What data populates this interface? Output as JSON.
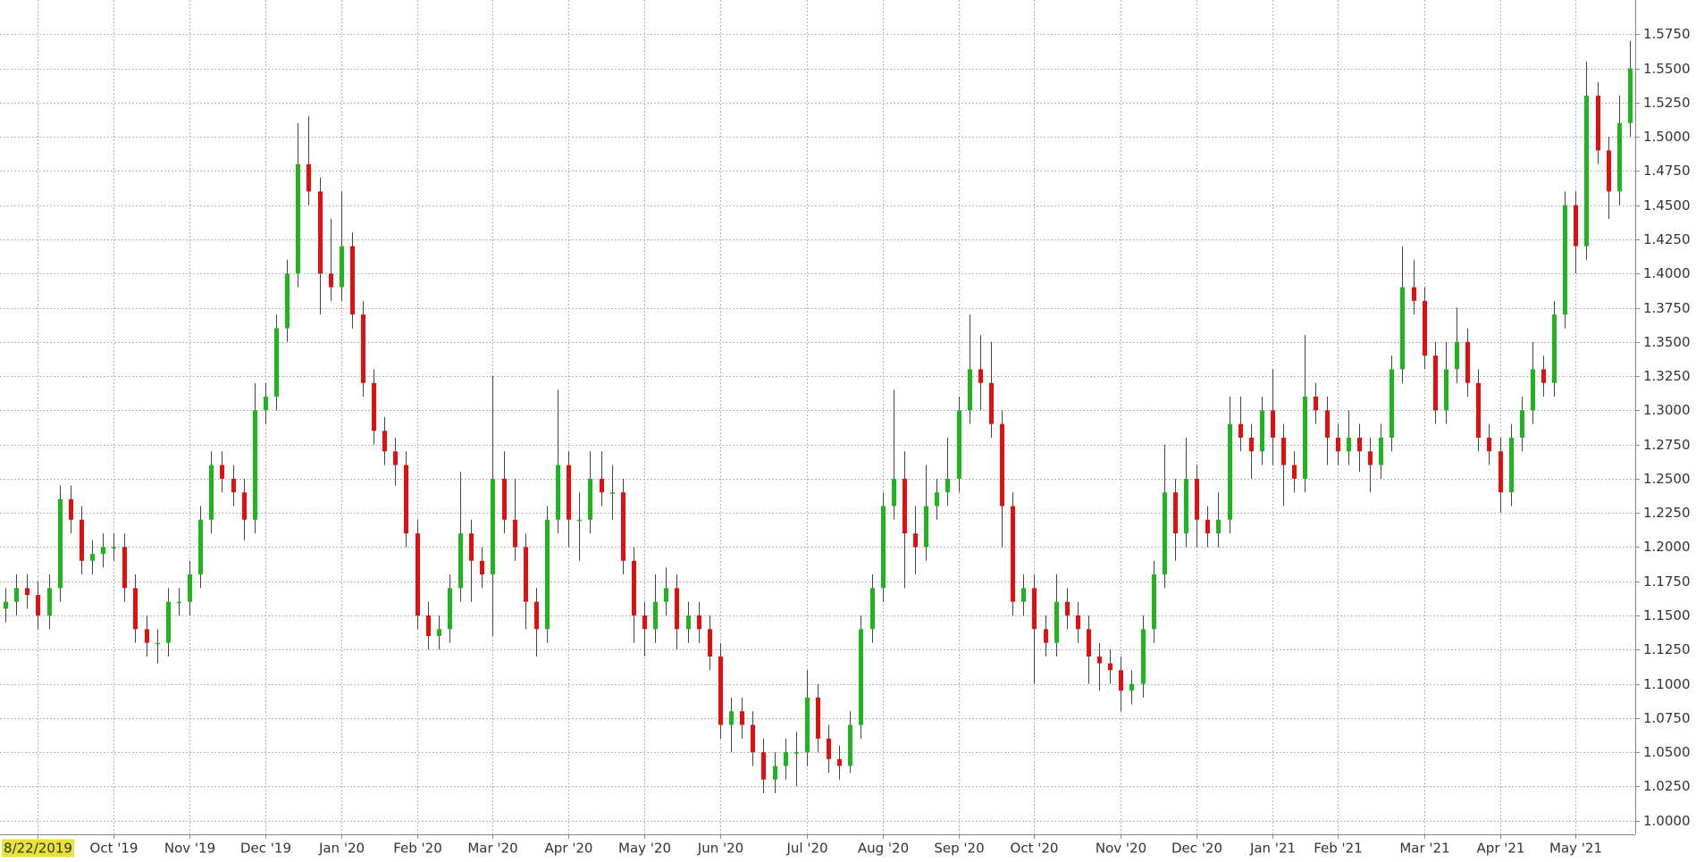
{
  "chart_data": {
    "type": "candlestick",
    "categories": [
      null,
      null,
      null,
      "8/22/2019",
      null,
      null,
      null,
      null,
      null,
      null,
      "Oct '19",
      null,
      null,
      null,
      null,
      null,
      null,
      "Nov '19",
      null,
      null,
      null,
      null,
      null,
      null,
      "Dec '19",
      null,
      null,
      null,
      null,
      null,
      null,
      "Jan '20",
      null,
      null,
      null,
      null,
      null,
      null,
      "Feb '20",
      null,
      null,
      null,
      null,
      null,
      null,
      "Mar '20",
      null,
      null,
      null,
      null,
      null,
      null,
      "Apr '20",
      null,
      null,
      null,
      null,
      null,
      null,
      "May '20",
      null,
      null,
      null,
      null,
      null,
      null,
      "Jun '20",
      null,
      null,
      null,
      null,
      null,
      null,
      null,
      "Jul '20",
      null,
      null,
      null,
      null,
      null,
      null,
      "Aug '20",
      null,
      null,
      null,
      null,
      null,
      null,
      "Sep '20",
      null,
      null,
      null,
      null,
      null,
      null,
      "Oct '20",
      null,
      null,
      null,
      null,
      null,
      null,
      null,
      "Nov '20",
      null,
      null,
      null,
      null,
      null,
      null,
      "Dec '20",
      null,
      null,
      null,
      null,
      null,
      null,
      "Jan '21",
      null,
      null,
      null,
      null,
      null,
      "Feb '21",
      null,
      null,
      null,
      null,
      null,
      null,
      null,
      "Mar '21",
      null,
      null,
      null,
      null,
      null,
      null,
      "Apr '21",
      null,
      null,
      null,
      null,
      null,
      null,
      "May '21",
      null,
      null,
      null,
      null,
      null
    ],
    "open": [
      1.155,
      1.16,
      1.17,
      1.165,
      1.15,
      1.17,
      1.235,
      1.22,
      1.19,
      1.195,
      1.2,
      1.2,
      1.17,
      1.14,
      1.13,
      1.13,
      1.16,
      1.16,
      1.18,
      1.22,
      1.26,
      1.25,
      1.24,
      1.22,
      1.3,
      1.31,
      1.36,
      1.4,
      1.48,
      1.46,
      1.4,
      1.39,
      1.42,
      1.37,
      1.32,
      1.285,
      1.27,
      1.26,
      1.21,
      1.15,
      1.135,
      1.14,
      1.17,
      1.21,
      1.19,
      1.18,
      1.25,
      1.22,
      1.2,
      1.16,
      1.14,
      1.22,
      1.26,
      1.22,
      1.22,
      1.25,
      1.24,
      1.24,
      1.19,
      1.15,
      1.14,
      1.16,
      1.17,
      1.14,
      1.15,
      1.14,
      1.12,
      1.07,
      1.08,
      1.07,
      1.05,
      1.03,
      1.04,
      1.05,
      1.05,
      1.09,
      1.06,
      1.045,
      1.04,
      1.07,
      1.14,
      1.17,
      1.23,
      1.25,
      1.21,
      1.2,
      1.23,
      1.24,
      1.25,
      1.3,
      1.33,
      1.32,
      1.29,
      1.23,
      1.16,
      1.17,
      1.14,
      1.13,
      1.16,
      1.15,
      1.14,
      1.12,
      1.115,
      1.11,
      1.095,
      1.1,
      1.14,
      1.18,
      1.24,
      1.21,
      1.25,
      1.22,
      1.21,
      1.22,
      1.29,
      1.28,
      1.27,
      1.3,
      1.28,
      1.26,
      1.25,
      1.31,
      1.3,
      1.28,
      1.27,
      1.28,
      1.27,
      1.26,
      1.28,
      1.33,
      1.39,
      1.38,
      1.34,
      1.3,
      1.33,
      1.35,
      1.32,
      1.28,
      1.27,
      1.24,
      1.28,
      1.3,
      1.33,
      1.32,
      1.37,
      1.45,
      1.42,
      1.53,
      1.49,
      1.46,
      1.51
    ],
    "high": [
      1.17,
      1.18,
      1.18,
      1.175,
      1.18,
      1.245,
      1.245,
      1.23,
      1.205,
      1.21,
      1.21,
      1.21,
      1.18,
      1.15,
      1.14,
      1.17,
      1.17,
      1.19,
      1.23,
      1.27,
      1.27,
      1.26,
      1.25,
      1.32,
      1.32,
      1.37,
      1.41,
      1.51,
      1.515,
      1.47,
      1.44,
      1.46,
      1.43,
      1.38,
      1.33,
      1.295,
      1.28,
      1.27,
      1.22,
      1.16,
      1.15,
      1.18,
      1.255,
      1.22,
      1.2,
      1.325,
      1.27,
      1.25,
      1.21,
      1.17,
      1.23,
      1.315,
      1.27,
      1.24,
      1.27,
      1.27,
      1.26,
      1.25,
      1.2,
      1.16,
      1.18,
      1.185,
      1.18,
      1.16,
      1.16,
      1.15,
      1.13,
      1.09,
      1.09,
      1.08,
      1.06,
      1.05,
      1.06,
      1.065,
      1.11,
      1.1,
      1.07,
      1.055,
      1.08,
      1.15,
      1.18,
      1.24,
      1.315,
      1.27,
      1.23,
      1.26,
      1.25,
      1.28,
      1.31,
      1.37,
      1.355,
      1.35,
      1.3,
      1.24,
      1.18,
      1.18,
      1.15,
      1.18,
      1.17,
      1.16,
      1.15,
      1.13,
      1.125,
      1.12,
      1.11,
      1.15,
      1.19,
      1.275,
      1.25,
      1.28,
      1.26,
      1.23,
      1.24,
      1.31,
      1.31,
      1.29,
      1.31,
      1.33,
      1.29,
      1.27,
      1.355,
      1.32,
      1.31,
      1.29,
      1.3,
      1.29,
      1.28,
      1.29,
      1.34,
      1.42,
      1.41,
      1.39,
      1.35,
      1.35,
      1.375,
      1.36,
      1.33,
      1.29,
      1.28,
      1.29,
      1.31,
      1.35,
      1.34,
      1.38,
      1.46,
      1.46,
      1.555,
      1.54,
      1.5,
      1.53,
      1.57
    ],
    "low": [
      1.145,
      1.15,
      1.155,
      1.14,
      1.14,
      1.16,
      1.21,
      1.18,
      1.18,
      1.185,
      1.19,
      1.16,
      1.13,
      1.12,
      1.115,
      1.12,
      1.15,
      1.15,
      1.17,
      1.21,
      1.24,
      1.23,
      1.205,
      1.21,
      1.29,
      1.3,
      1.35,
      1.39,
      1.45,
      1.37,
      1.38,
      1.38,
      1.36,
      1.31,
      1.275,
      1.26,
      1.245,
      1.2,
      1.14,
      1.125,
      1.125,
      1.13,
      1.16,
      1.16,
      1.17,
      1.135,
      1.21,
      1.19,
      1.14,
      1.12,
      1.13,
      1.21,
      1.2,
      1.19,
      1.21,
      1.23,
      1.22,
      1.18,
      1.13,
      1.12,
      1.13,
      1.15,
      1.125,
      1.13,
      1.13,
      1.11,
      1.06,
      1.05,
      1.06,
      1.04,
      1.02,
      1.02,
      1.03,
      1.025,
      1.04,
      1.05,
      1.035,
      1.03,
      1.035,
      1.06,
      1.13,
      1.16,
      1.22,
      1.17,
      1.18,
      1.19,
      1.22,
      1.23,
      1.24,
      1.29,
      1.3,
      1.28,
      1.2,
      1.15,
      1.15,
      1.1,
      1.12,
      1.12,
      1.14,
      1.13,
      1.1,
      1.095,
      1.1,
      1.08,
      1.085,
      1.09,
      1.13,
      1.17,
      1.19,
      1.2,
      1.2,
      1.2,
      1.2,
      1.21,
      1.27,
      1.25,
      1.26,
      1.26,
      1.23,
      1.24,
      1.24,
      1.29,
      1.26,
      1.26,
      1.26,
      1.255,
      1.24,
      1.25,
      1.27,
      1.32,
      1.37,
      1.33,
      1.29,
      1.29,
      1.32,
      1.31,
      1.27,
      1.26,
      1.225,
      1.23,
      1.27,
      1.29,
      1.31,
      1.31,
      1.36,
      1.4,
      1.41,
      1.48,
      1.44,
      1.45,
      1.5
    ],
    "close": [
      1.16,
      1.17,
      1.165,
      1.15,
      1.17,
      1.235,
      1.22,
      1.19,
      1.195,
      1.2,
      1.2,
      1.17,
      1.14,
      1.13,
      1.13,
      1.16,
      1.16,
      1.18,
      1.22,
      1.26,
      1.25,
      1.24,
      1.22,
      1.3,
      1.31,
      1.36,
      1.4,
      1.48,
      1.46,
      1.4,
      1.39,
      1.42,
      1.37,
      1.32,
      1.285,
      1.27,
      1.26,
      1.21,
      1.15,
      1.135,
      1.14,
      1.17,
      1.21,
      1.19,
      1.18,
      1.25,
      1.22,
      1.2,
      1.16,
      1.14,
      1.22,
      1.26,
      1.22,
      1.22,
      1.25,
      1.24,
      1.24,
      1.19,
      1.15,
      1.14,
      1.16,
      1.17,
      1.14,
      1.15,
      1.14,
      1.12,
      1.07,
      1.08,
      1.07,
      1.05,
      1.03,
      1.04,
      1.05,
      1.05,
      1.09,
      1.06,
      1.045,
      1.04,
      1.07,
      1.14,
      1.17,
      1.23,
      1.25,
      1.21,
      1.2,
      1.23,
      1.24,
      1.25,
      1.3,
      1.33,
      1.32,
      1.29,
      1.23,
      1.16,
      1.17,
      1.14,
      1.13,
      1.16,
      1.15,
      1.14,
      1.12,
      1.115,
      1.11,
      1.095,
      1.1,
      1.14,
      1.18,
      1.24,
      1.21,
      1.25,
      1.22,
      1.21,
      1.22,
      1.29,
      1.28,
      1.27,
      1.3,
      1.28,
      1.26,
      1.25,
      1.31,
      1.3,
      1.28,
      1.27,
      1.28,
      1.27,
      1.26,
      1.28,
      1.33,
      1.39,
      1.38,
      1.34,
      1.3,
      1.33,
      1.35,
      1.32,
      1.28,
      1.27,
      1.24,
      1.28,
      1.3,
      1.33,
      1.32,
      1.37,
      1.45,
      1.42,
      1.53,
      1.49,
      1.46,
      1.51,
      1.55
    ],
    "up_color": "#1fb51f",
    "down_color": "#e01010",
    "ylim": [
      0.99,
      1.6
    ],
    "yticks": [
      {
        "value": 1.0,
        "label": "1.0000"
      },
      {
        "value": 1.025,
        "label": "1.0250"
      },
      {
        "value": 1.05,
        "label": "1.0500"
      },
      {
        "value": 1.075,
        "label": "1.0750"
      },
      {
        "value": 1.1,
        "label": "1.1000"
      },
      {
        "value": 1.125,
        "label": "1.1250"
      },
      {
        "value": 1.15,
        "label": "1.1500"
      },
      {
        "value": 1.175,
        "label": "1.1750"
      },
      {
        "value": 1.2,
        "label": "1.2000"
      },
      {
        "value": 1.225,
        "label": "1.2250"
      },
      {
        "value": 1.25,
        "label": "1.2500"
      },
      {
        "value": 1.275,
        "label": "1.2750"
      },
      {
        "value": 1.3,
        "label": "1.3000"
      },
      {
        "value": 1.325,
        "label": "1.3250"
      },
      {
        "value": 1.35,
        "label": "1.3500"
      },
      {
        "value": 1.375,
        "label": "1.3750"
      },
      {
        "value": 1.4,
        "label": "1.4000"
      },
      {
        "value": 1.425,
        "label": "1.4250"
      },
      {
        "value": 1.45,
        "label": "1.4500"
      },
      {
        "value": 1.475,
        "label": "1.4750"
      },
      {
        "value": 1.5,
        "label": "1.5000"
      },
      {
        "value": 1.525,
        "label": "1.5250"
      },
      {
        "value": 1.55,
        "label": "1.5500"
      },
      {
        "value": 1.575,
        "label": "1.5750"
      }
    ],
    "y_axis_side": "right",
    "grid": true
  }
}
